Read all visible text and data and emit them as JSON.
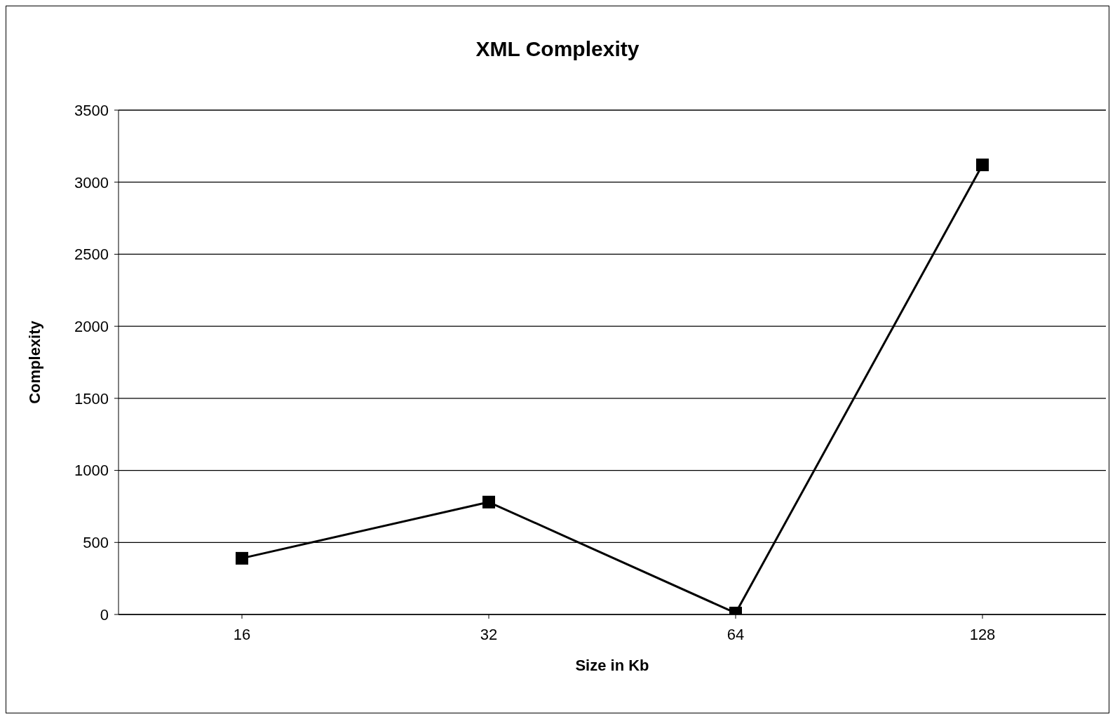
{
  "chart_data": {
    "type": "line",
    "title": "XML Complexity",
    "xlabel": "Size in Kb",
    "ylabel": "Complexity",
    "categories": [
      "16",
      "32",
      "64",
      "128"
    ],
    "series": [
      {
        "color": "#000000",
        "values": [
          390,
          780,
          10,
          3120
        ]
      }
    ],
    "ylim": [
      0,
      3500
    ],
    "yticks": [
      0,
      500,
      1000,
      1500,
      2000,
      2500,
      3000,
      3500
    ],
    "grid": "y",
    "marker": "square",
    "line_style": "solid"
  }
}
